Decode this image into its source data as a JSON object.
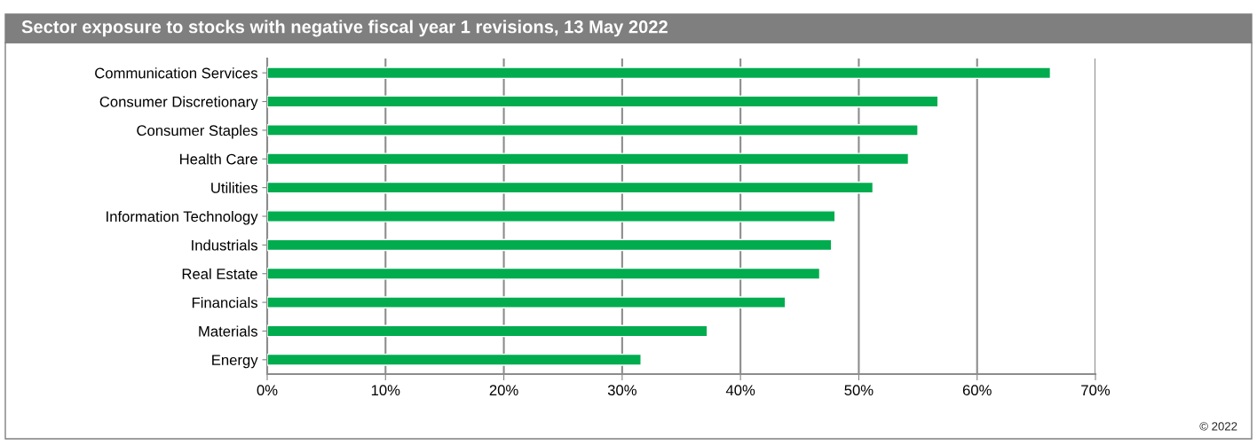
{
  "chart_data": {
    "type": "bar",
    "orientation": "horizontal",
    "title": "Sector exposure to stocks with negative fiscal year 1 revisions, 13 May 2022",
    "categories": [
      "Communication Services",
      "Consumer Discretionary",
      "Consumer Staples",
      "Health Care",
      "Utilities",
      "Information Technology",
      "Industrials",
      "Real Estate",
      "Financials",
      "Materials",
      "Energy"
    ],
    "values": [
      66.2,
      56.7,
      55.0,
      54.2,
      51.2,
      48.0,
      47.7,
      46.7,
      43.8,
      37.2,
      31.6
    ],
    "color": "#00ac4e",
    "xlim": [
      0,
      70
    ],
    "xticks": [
      {
        "value": 0,
        "label": "0%"
      },
      {
        "value": 10,
        "label": "10%"
      },
      {
        "value": 20,
        "label": "20%"
      },
      {
        "value": 30,
        "label": "30%"
      },
      {
        "value": 40,
        "label": "40%"
      },
      {
        "value": 50,
        "label": "50%"
      },
      {
        "value": 60,
        "label": "60%"
      },
      {
        "value": 70,
        "label": "70%"
      }
    ],
    "grid": "x",
    "annotations": [
      "© 2022"
    ]
  }
}
